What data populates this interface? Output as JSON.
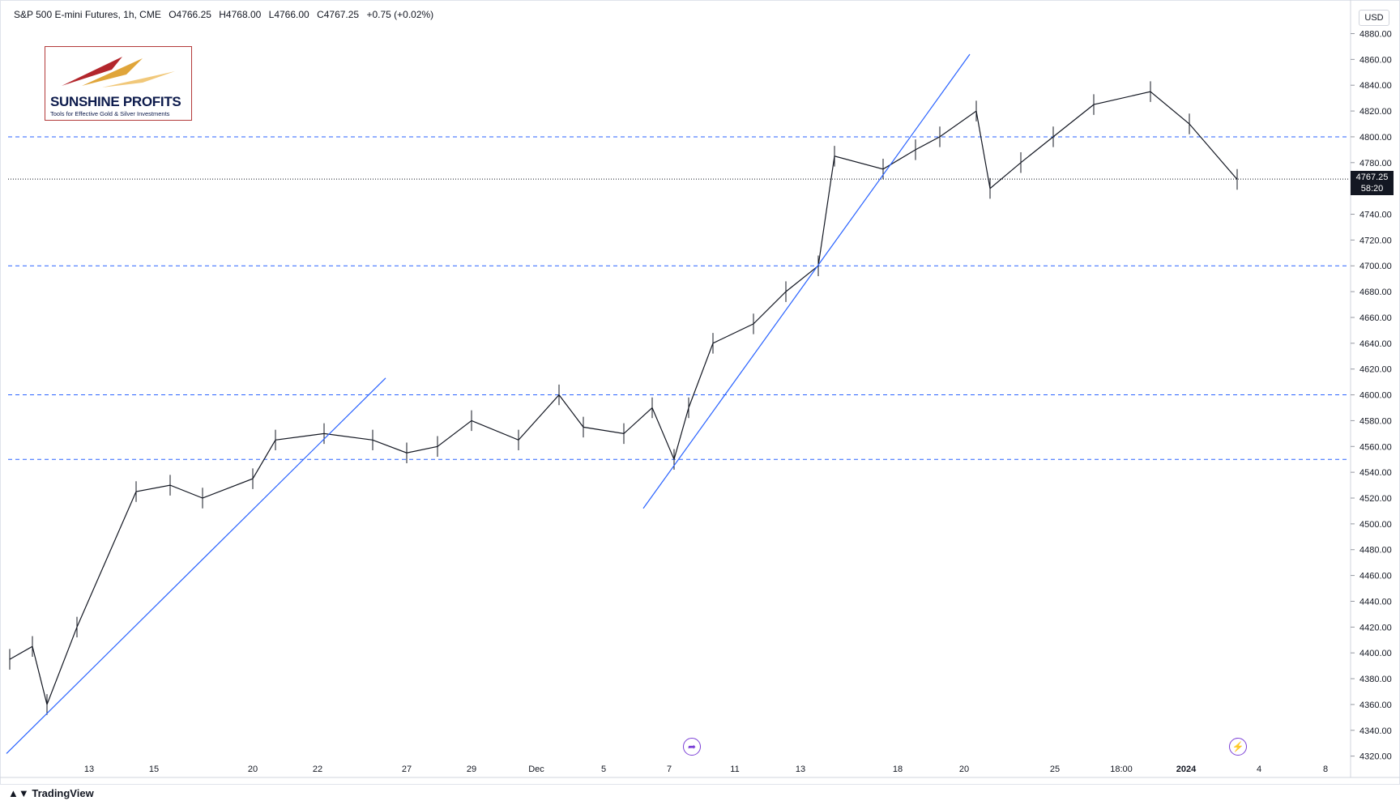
{
  "header": {
    "instrument": "S&P 500 E-mini Futures, 1h, CME",
    "open": "O4766.25",
    "high": "H4768.00",
    "low": "L4766.00",
    "close": "C4767.25",
    "change": "+0.75 (+0.02%)"
  },
  "logo": {
    "brand": "SUNSHINE PROFITS",
    "tagline": "Tools for Effective Gold & Silver Investments"
  },
  "currency": "USD",
  "last_price": {
    "price": "4767.25",
    "countdown": "58:20"
  },
  "footer": {
    "brand": "TradingView"
  },
  "icons": [
    "tradingview-logo-icon",
    "replay-icon",
    "lightning-icon"
  ],
  "colors": {
    "candle": "#131722",
    "trendline": "#2962ff",
    "level": "#2962ff",
    "label_bg": "#131722"
  },
  "chart_data": {
    "type": "line",
    "chart": "1h candlestick price chart",
    "y_axis": {
      "ticks": [
        4320,
        4340,
        4360,
        4380,
        4400,
        4420,
        4440,
        4460,
        4480,
        4500,
        4520,
        4540,
        4560,
        4580,
        4600,
        4620,
        4640,
        4660,
        4680,
        4700,
        4720,
        4740,
        4760,
        4780,
        4800,
        4820,
        4840,
        4860,
        4880
      ],
      "range": [
        4316,
        4896
      ]
    },
    "x_axis": {
      "tick_labels": [
        "13",
        "15",
        "20",
        "22",
        "27",
        "29",
        "Dec",
        "5",
        "7",
        "11",
        "13",
        "18",
        "20",
        "25",
        "18:00",
        "2024",
        "4",
        "8"
      ]
    },
    "horizontal_levels": [
      4800,
      4700,
      4600,
      4550
    ],
    "current_price_line": 4767.25,
    "series": [
      {
        "x": [
          "Nov 10",
          "Nov 11",
          "Nov 13",
          "Nov 14",
          "Nov 15",
          "Nov 16",
          "Nov 17",
          "Nov 20",
          "Nov 21",
          "Nov 22",
          "Nov 24",
          "Nov 27",
          "Nov 28",
          "Nov 29",
          "Nov 30",
          "Dec 1",
          "Dec 4",
          "Dec 5",
          "Dec 6",
          "Dec 7",
          "Dec 8",
          "Dec 11",
          "Dec 12",
          "Dec 13",
          "Dec 14",
          "Dec 15",
          "Dec 18",
          "Dec 19",
          "Dec 20",
          "Dec 21",
          "Dec 22",
          "Dec 26",
          "Dec 27",
          "Dec 28",
          "Dec 29",
          "Jan 2",
          "Jan 3"
        ],
        "values": [
          4395,
          4405,
          4360,
          4420,
          4525,
          4530,
          4520,
          4535,
          4565,
          4570,
          4565,
          4555,
          4560,
          4580,
          4565,
          4600,
          4575,
          4570,
          4590,
          4550,
          4590,
          4640,
          4655,
          4680,
          4700,
          4785,
          4775,
          4790,
          4800,
          4820,
          4760,
          4780,
          4800,
          4825,
          4835,
          4810,
          4767
        ]
      }
    ],
    "trendlines": [
      {
        "from": [
          "Nov 9",
          4322
        ],
        "to": [
          "Nov 24",
          4613
        ]
      },
      {
        "from": [
          "Dec 6",
          4512
        ],
        "to": [
          "Dec 20",
          4864
        ]
      }
    ]
  }
}
